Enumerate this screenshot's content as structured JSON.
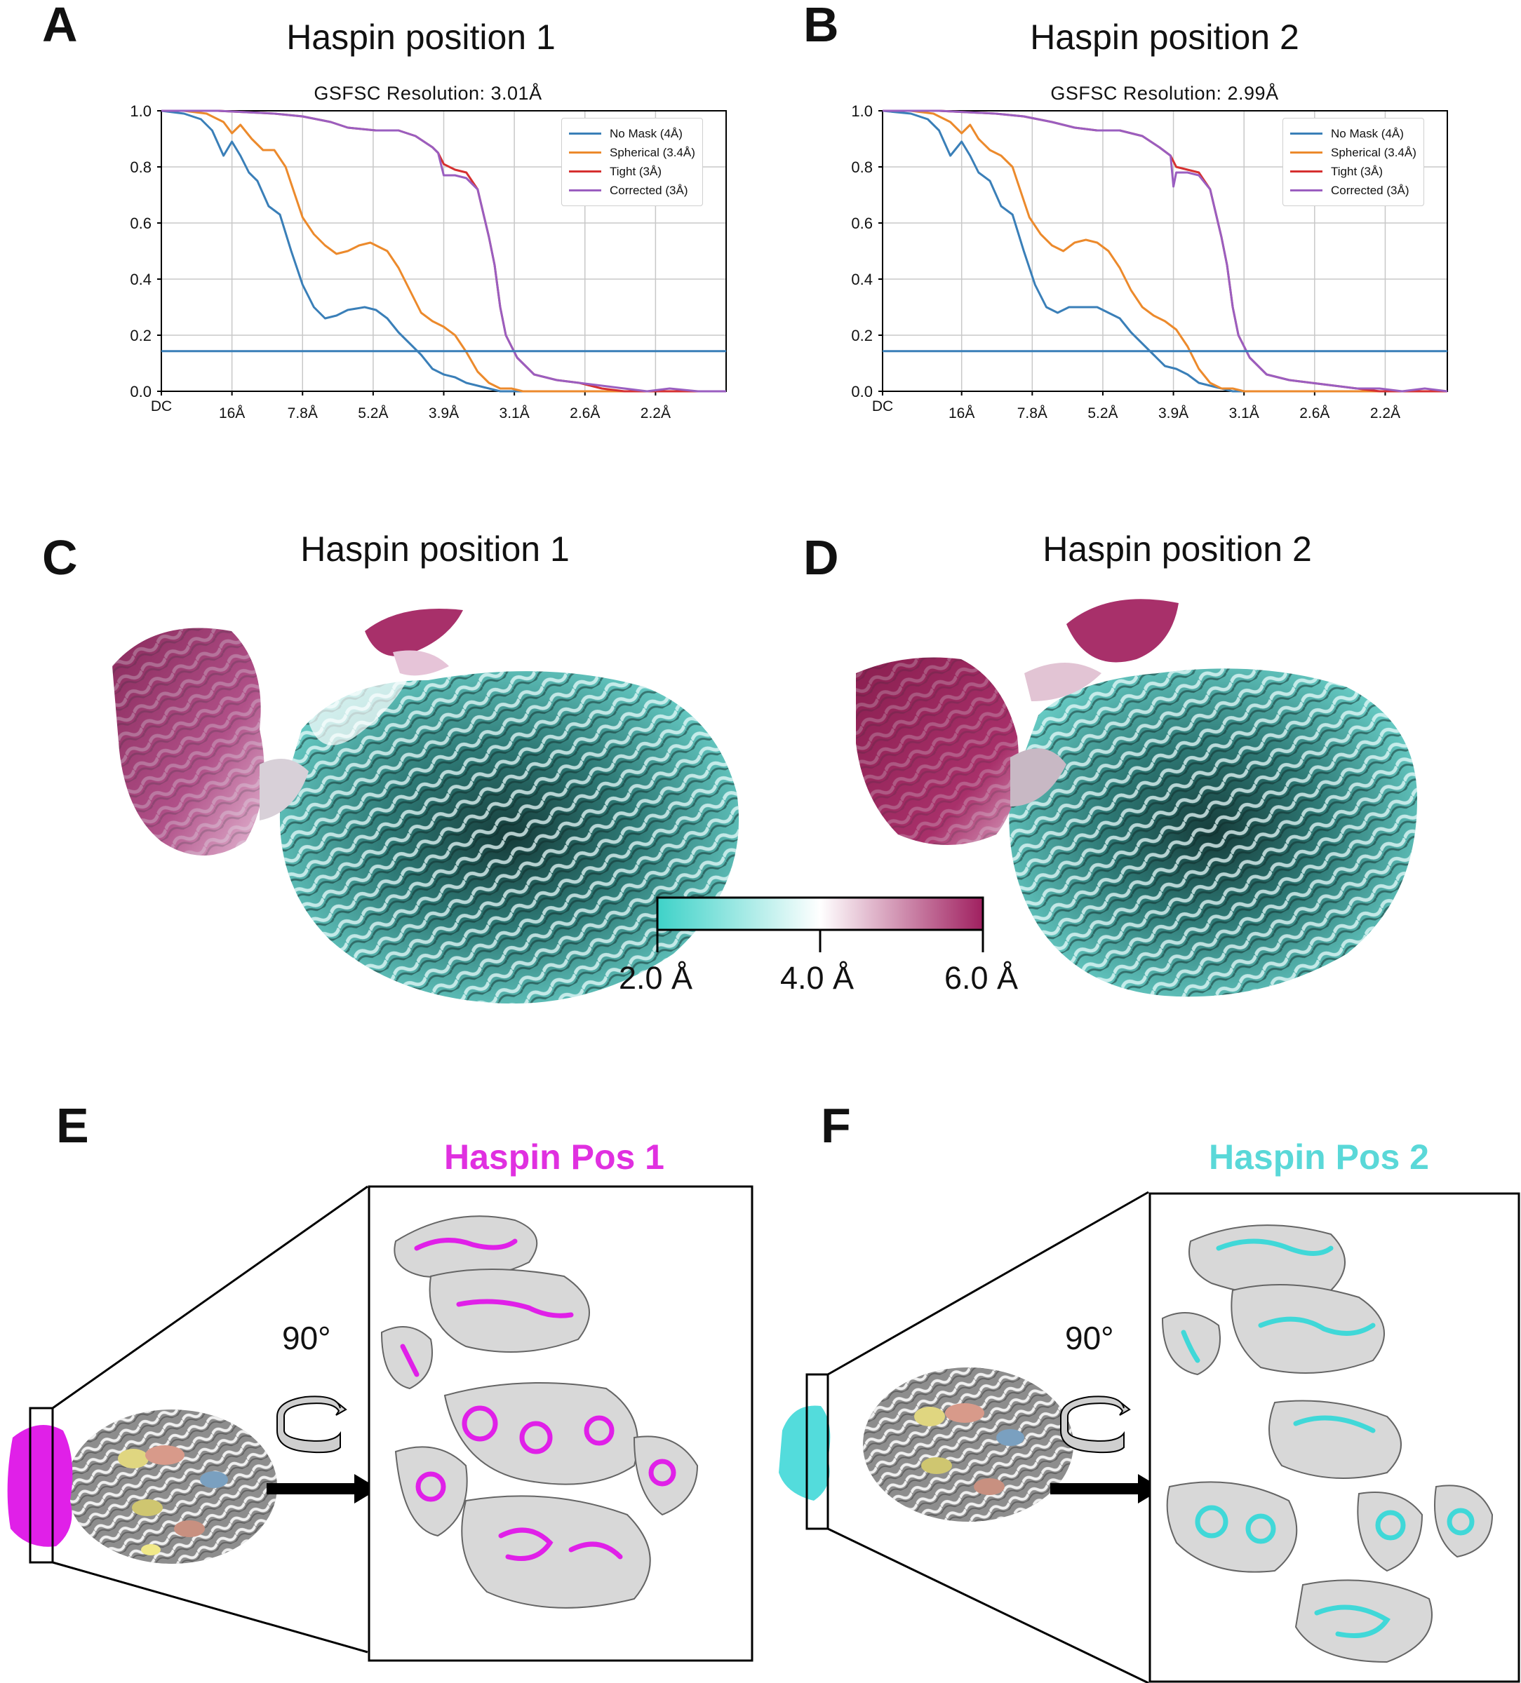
{
  "panels": {
    "A": {
      "letter": "A",
      "title": "Haspin position 1"
    },
    "B": {
      "letter": "B",
      "title": "Haspin position 2"
    },
    "C": {
      "letter": "C",
      "title": "Haspin position 1"
    },
    "D": {
      "letter": "D",
      "title": "Haspin position 2"
    },
    "E": {
      "letter": "E",
      "label": "Haspin Pos 1",
      "label_color": "#e030e0",
      "rotation": "90°",
      "color": "#e020e8"
    },
    "F": {
      "letter": "F",
      "label": "Haspin Pos 2",
      "label_color": "#5ad8d8",
      "rotation": "90°",
      "color": "#40d8d8"
    }
  },
  "colorbar": {
    "labels": [
      "2.0 Å",
      "4.0 Å",
      "6.0 Å"
    ],
    "colors": [
      "#3ed2c8",
      "#ffffff",
      "#a02060"
    ]
  },
  "map_colors": {
    "cyan": "#5ccdc7",
    "teal_dark": "#1f4d4a",
    "magenta": "#a8306a",
    "pink": "#d8a0c0"
  },
  "chart_data": [
    {
      "type": "line",
      "title": "GSFSC Resolution: 3.01Å",
      "x_tick_labels": [
        "DC",
        "16Å",
        "7.8Å",
        "5.2Å",
        "3.9Å",
        "3.1Å",
        "2.6Å",
        "2.2Å"
      ],
      "x_tick_positions": [
        0,
        0.125,
        0.25,
        0.375,
        0.5,
        0.625,
        0.75,
        0.875
      ],
      "ylim": [
        0,
        1.0
      ],
      "y_ticks": [
        0.0,
        0.2,
        0.4,
        0.6,
        0.8,
        1.0
      ],
      "y_tick_labels": [
        "0.0",
        "0.2",
        "0.4",
        "0.6",
        "0.8",
        "1.0"
      ],
      "threshold": 0.143,
      "grid": true,
      "legend_position": "top-right",
      "series": [
        {
          "name": "No Mask (4Å)",
          "color": "#3a7fb8",
          "x": [
            0,
            0.04,
            0.07,
            0.09,
            0.11,
            0.125,
            0.14,
            0.155,
            0.17,
            0.19,
            0.21,
            0.23,
            0.25,
            0.27,
            0.29,
            0.31,
            0.33,
            0.36,
            0.38,
            0.4,
            0.42,
            0.44,
            0.46,
            0.48,
            0.5,
            0.52,
            0.54,
            0.56,
            0.58,
            0.6,
            0.62,
            0.65,
            0.7,
            0.75,
            0.8,
            0.85,
            0.9,
            0.95,
            1.0
          ],
          "y": [
            1.0,
            0.99,
            0.97,
            0.93,
            0.84,
            0.89,
            0.84,
            0.78,
            0.75,
            0.66,
            0.63,
            0.5,
            0.38,
            0.3,
            0.26,
            0.27,
            0.29,
            0.3,
            0.29,
            0.26,
            0.21,
            0.17,
            0.13,
            0.08,
            0.06,
            0.05,
            0.03,
            0.02,
            0.01,
            0.0,
            0.0,
            0.0,
            0.0,
            0.0,
            0.0,
            0.0,
            0.0,
            0.0,
            0.0
          ]
        },
        {
          "name": "Spherical (3.4Å)",
          "color": "#ec8a2c",
          "x": [
            0,
            0.04,
            0.08,
            0.11,
            0.125,
            0.14,
            0.16,
            0.18,
            0.2,
            0.22,
            0.23,
            0.25,
            0.27,
            0.29,
            0.31,
            0.33,
            0.35,
            0.37,
            0.4,
            0.42,
            0.44,
            0.46,
            0.48,
            0.5,
            0.52,
            0.54,
            0.56,
            0.58,
            0.6,
            0.62,
            0.64,
            0.66,
            0.7,
            0.75,
            0.8,
            0.85,
            0.9,
            0.95,
            1.0
          ],
          "y": [
            1.0,
            1.0,
            0.99,
            0.96,
            0.92,
            0.95,
            0.9,
            0.86,
            0.86,
            0.8,
            0.74,
            0.62,
            0.56,
            0.52,
            0.49,
            0.5,
            0.52,
            0.53,
            0.5,
            0.44,
            0.36,
            0.28,
            0.25,
            0.23,
            0.2,
            0.14,
            0.07,
            0.03,
            0.01,
            0.01,
            0.0,
            0.0,
            0.0,
            0.0,
            0.0,
            0.0,
            0.0,
            0.0,
            0.0
          ]
        },
        {
          "name": "Tight (3Å)",
          "color": "#d63030",
          "x": [
            0,
            0.1,
            0.2,
            0.25,
            0.3,
            0.33,
            0.38,
            0.42,
            0.45,
            0.48,
            0.49,
            0.5,
            0.52,
            0.54,
            0.56,
            0.58,
            0.59,
            0.6,
            0.61,
            0.63,
            0.66,
            0.7,
            0.74,
            0.78,
            0.82,
            0.86,
            0.9,
            0.95,
            1.0
          ],
          "y": [
            1.0,
            1.0,
            0.99,
            0.98,
            0.96,
            0.94,
            0.93,
            0.93,
            0.91,
            0.87,
            0.85,
            0.81,
            0.79,
            0.78,
            0.72,
            0.55,
            0.45,
            0.3,
            0.2,
            0.12,
            0.06,
            0.04,
            0.03,
            0.01,
            0.0,
            0.0,
            0.0,
            0.0,
            0.0
          ]
        },
        {
          "name": "Corrected (3Å)",
          "color": "#9a5ec0",
          "x": [
            0,
            0.1,
            0.2,
            0.25,
            0.3,
            0.33,
            0.38,
            0.42,
            0.45,
            0.48,
            0.49,
            0.5,
            0.52,
            0.54,
            0.56,
            0.58,
            0.59,
            0.6,
            0.61,
            0.63,
            0.66,
            0.7,
            0.74,
            0.78,
            0.82,
            0.86,
            0.9,
            0.95,
            1.0
          ],
          "y": [
            1.0,
            1.0,
            0.99,
            0.98,
            0.96,
            0.94,
            0.93,
            0.93,
            0.91,
            0.87,
            0.85,
            0.77,
            0.77,
            0.76,
            0.72,
            0.55,
            0.45,
            0.3,
            0.2,
            0.12,
            0.06,
            0.04,
            0.03,
            0.02,
            0.01,
            0.0,
            0.01,
            0.0,
            0.0
          ]
        }
      ]
    },
    {
      "type": "line",
      "title": "GSFSC Resolution: 2.99Å",
      "x_tick_labels": [
        "DC",
        "16Å",
        "7.8Å",
        "5.2Å",
        "3.9Å",
        "3.1Å",
        "2.6Å",
        "2.2Å"
      ],
      "x_tick_positions": [
        0,
        0.14,
        0.265,
        0.39,
        0.515,
        0.64,
        0.765,
        0.89
      ],
      "ylim": [
        0,
        1.0
      ],
      "y_ticks": [
        0.0,
        0.2,
        0.4,
        0.6,
        0.8,
        1.0
      ],
      "y_tick_labels": [
        "0.0",
        "0.2",
        "0.4",
        "0.6",
        "0.8",
        "1.0"
      ],
      "threshold": 0.143,
      "grid": true,
      "legend_position": "top-right",
      "series": [
        {
          "name": "No Mask (4Å)",
          "color": "#3a7fb8",
          "x": [
            0,
            0.05,
            0.08,
            0.1,
            0.12,
            0.14,
            0.155,
            0.17,
            0.19,
            0.21,
            0.23,
            0.25,
            0.27,
            0.29,
            0.31,
            0.33,
            0.35,
            0.38,
            0.4,
            0.42,
            0.44,
            0.46,
            0.48,
            0.5,
            0.52,
            0.54,
            0.56,
            0.58,
            0.6,
            0.62,
            0.65,
            0.7,
            0.75,
            0.8,
            0.85,
            0.9,
            0.95,
            1.0
          ],
          "y": [
            1.0,
            0.99,
            0.97,
            0.93,
            0.84,
            0.89,
            0.84,
            0.78,
            0.75,
            0.66,
            0.63,
            0.5,
            0.38,
            0.3,
            0.28,
            0.3,
            0.3,
            0.3,
            0.28,
            0.26,
            0.21,
            0.17,
            0.13,
            0.09,
            0.08,
            0.06,
            0.03,
            0.02,
            0.01,
            0.0,
            0.0,
            0.0,
            0.0,
            0.0,
            0.0,
            0.0,
            0.0,
            0.0
          ]
        },
        {
          "name": "Spherical (3.4Å)",
          "color": "#ec8a2c",
          "x": [
            0,
            0.05,
            0.09,
            0.12,
            0.14,
            0.155,
            0.17,
            0.19,
            0.21,
            0.23,
            0.24,
            0.26,
            0.28,
            0.3,
            0.32,
            0.34,
            0.36,
            0.38,
            0.4,
            0.42,
            0.44,
            0.46,
            0.48,
            0.5,
            0.52,
            0.54,
            0.56,
            0.58,
            0.6,
            0.62,
            0.64,
            0.66,
            0.7,
            0.75,
            0.8,
            0.85,
            0.9,
            0.95,
            1.0
          ],
          "y": [
            1.0,
            1.0,
            0.99,
            0.96,
            0.92,
            0.95,
            0.9,
            0.86,
            0.84,
            0.8,
            0.74,
            0.62,
            0.56,
            0.52,
            0.5,
            0.53,
            0.54,
            0.53,
            0.5,
            0.44,
            0.36,
            0.3,
            0.27,
            0.25,
            0.22,
            0.16,
            0.08,
            0.03,
            0.01,
            0.01,
            0.0,
            0.0,
            0.0,
            0.0,
            0.0,
            0.0,
            0.0,
            0.0,
            0.0
          ]
        },
        {
          "name": "Tight (3Å)",
          "color": "#d63030",
          "x": [
            0,
            0.1,
            0.2,
            0.25,
            0.3,
            0.34,
            0.38,
            0.42,
            0.46,
            0.49,
            0.51,
            0.52,
            0.54,
            0.56,
            0.58,
            0.6,
            0.61,
            0.62,
            0.63,
            0.65,
            0.68,
            0.72,
            0.76,
            0.8,
            0.84,
            0.88,
            0.92,
            0.96,
            1.0
          ],
          "y": [
            1.0,
            1.0,
            0.99,
            0.98,
            0.96,
            0.94,
            0.93,
            0.93,
            0.91,
            0.87,
            0.84,
            0.8,
            0.79,
            0.78,
            0.72,
            0.55,
            0.45,
            0.3,
            0.2,
            0.12,
            0.06,
            0.04,
            0.03,
            0.02,
            0.01,
            0.0,
            0.0,
            0.0,
            0.0
          ]
        },
        {
          "name": "Corrected (3Å)",
          "color": "#9a5ec0",
          "x": [
            0,
            0.1,
            0.2,
            0.25,
            0.3,
            0.34,
            0.38,
            0.42,
            0.46,
            0.49,
            0.51,
            0.515,
            0.52,
            0.54,
            0.56,
            0.58,
            0.6,
            0.61,
            0.62,
            0.63,
            0.65,
            0.68,
            0.72,
            0.76,
            0.8,
            0.84,
            0.88,
            0.92,
            0.96,
            1.0
          ],
          "y": [
            1.0,
            1.0,
            0.99,
            0.98,
            0.96,
            0.94,
            0.93,
            0.93,
            0.91,
            0.87,
            0.84,
            0.73,
            0.78,
            0.78,
            0.77,
            0.72,
            0.55,
            0.45,
            0.3,
            0.2,
            0.12,
            0.06,
            0.04,
            0.03,
            0.02,
            0.01,
            0.01,
            0.0,
            0.01,
            0.0
          ]
        }
      ]
    }
  ]
}
